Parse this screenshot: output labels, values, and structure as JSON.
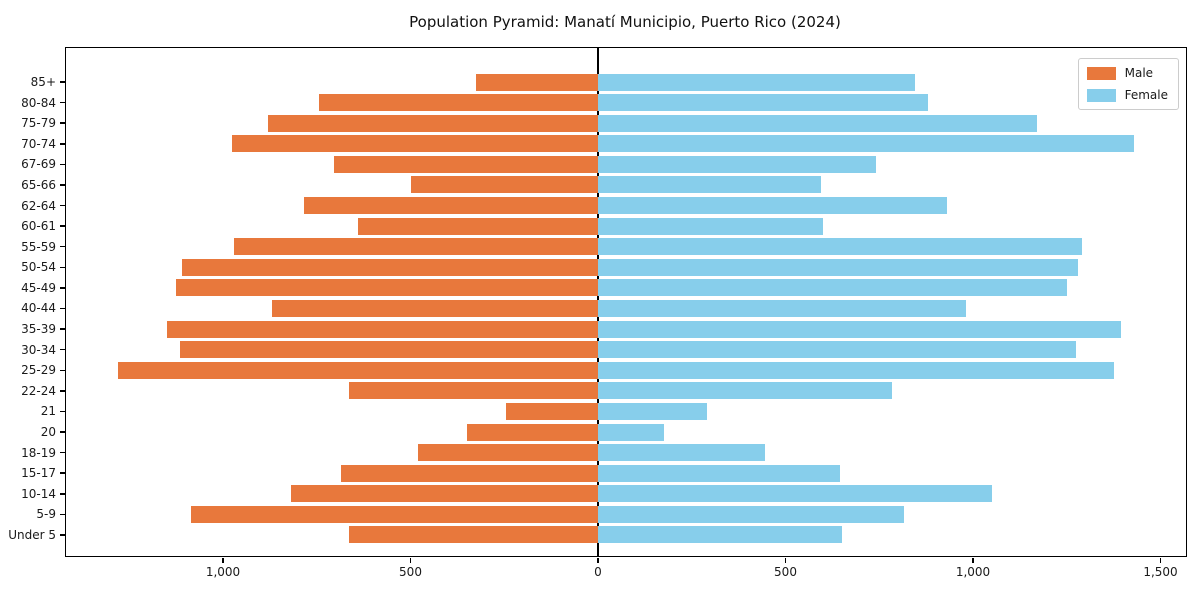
{
  "title": "Population Pyramid: Manatí Municipio, Puerto Rico (2024)",
  "legend": {
    "male_label": "Male",
    "female_label": "Female"
  },
  "colors": {
    "male": "#e8783c",
    "female": "#87ceeb",
    "axis": "#000000",
    "legend_border": "#cccccc",
    "background": "#ffffff"
  },
  "chart_data": {
    "type": "bar",
    "orientation": "horizontal population pyramid (male left, female right)",
    "title": "Population Pyramid: Manatí Municipio, Puerto Rico (2024)",
    "categories": [
      "85+",
      "80-84",
      "75-79",
      "70-74",
      "67-69",
      "65-66",
      "62-64",
      "60-61",
      "55-59",
      "50-54",
      "45-49",
      "40-44",
      "35-39",
      "30-34",
      "25-29",
      "22-24",
      "21",
      "20",
      "18-19",
      "15-17",
      "10-14",
      "5-9",
      "Under 5"
    ],
    "series": [
      {
        "name": "Male",
        "values": [
          325,
          745,
          880,
          975,
          705,
          500,
          785,
          640,
          970,
          1110,
          1125,
          870,
          1150,
          1115,
          1280,
          665,
          245,
          350,
          480,
          685,
          820,
          1085,
          665
        ]
      },
      {
        "name": "Female",
        "values": [
          845,
          880,
          1170,
          1430,
          740,
          595,
          930,
          600,
          1290,
          1280,
          1250,
          980,
          1395,
          1275,
          1375,
          785,
          290,
          175,
          445,
          645,
          1050,
          815,
          650
        ]
      }
    ],
    "xlabel": "",
    "ylabel": "",
    "x_tick_labels": [
      "1,000",
      "500",
      "0",
      "500",
      "1,000",
      "1,500"
    ],
    "x_tick_values": [
      -1000,
      -500,
      0,
      500,
      1000,
      1500
    ],
    "xlim": [
      -1418,
      1568
    ],
    "grid": false,
    "legend_position": "upper right"
  }
}
